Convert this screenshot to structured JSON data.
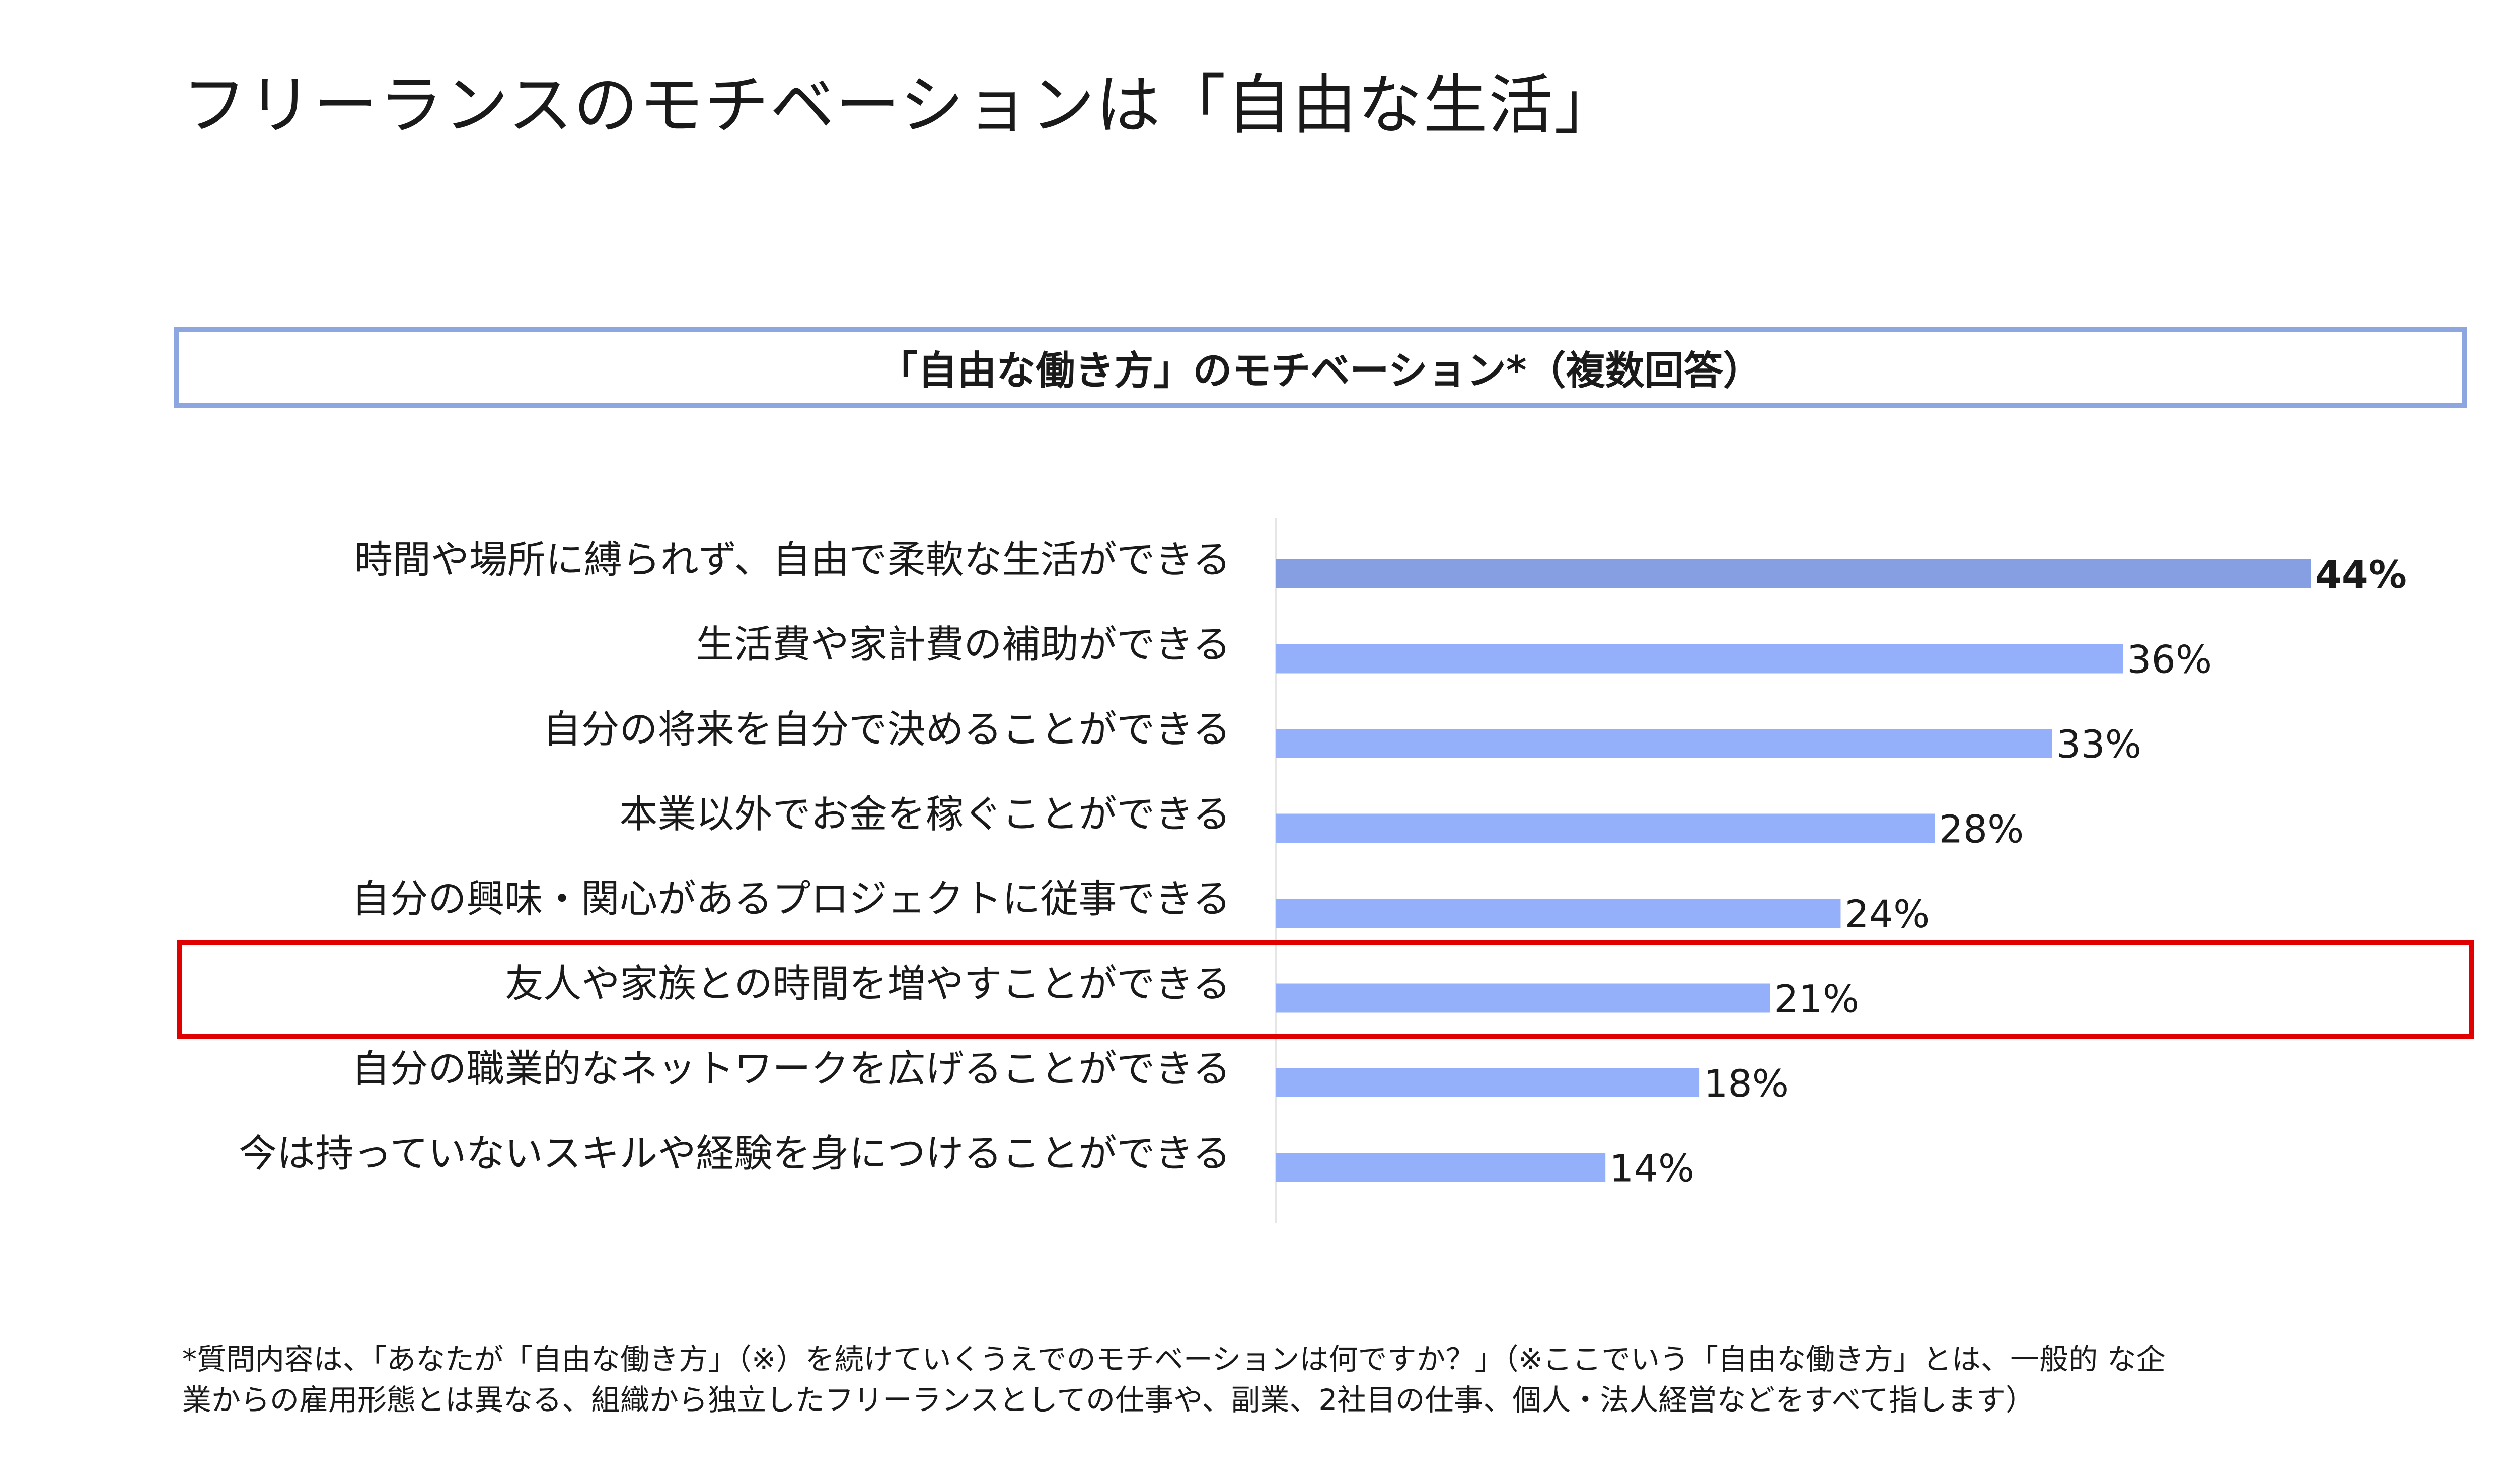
{
  "title": "フリーランスのモチベーションは「自由な生活」",
  "subtitle": "「自由な働き方」のモチベーション*（複数回答）",
  "chart_data": {
    "type": "bar",
    "orientation": "horizontal",
    "categories": [
      "時間や場所に縛られず、自由で柔軟な生活ができる",
      "生活費や家計費の補助ができる",
      "自分の将来を自分で決めることができる",
      "本業以外でお金を稼ぐことができる",
      "自分の興味・関心があるプロジェクトに従事できる",
      "友人や家族との時間を増やすことができる",
      "自分の職業的なネットワークを広げることができる",
      "今は持っていないスキルや経験を身につけることができる"
    ],
    "values": [
      44,
      36,
      33,
      28,
      24,
      21,
      18,
      14
    ],
    "value_labels": [
      "44%",
      "36%",
      "33%",
      "28%",
      "24%",
      "21%",
      "18%",
      "14%"
    ],
    "unit": "%",
    "xlim": [
      0,
      50
    ],
    "grid": false,
    "emphasized_index": 0,
    "highlighted_index": 5,
    "colors": {
      "bar": "#94b0fb",
      "bar_emphasized": "#869fe3",
      "highlight_border": "#e00000",
      "subtitle_border": "#8ea6e0",
      "axis_line": "#e6e6e6"
    }
  },
  "footnote": {
    "line1": "*質問内容は、「あなたが「自由な働き方」（※）を続けていくうえでのモチベーションは何ですか？」（※ここでいう「自由な働き方」とは、一般的 な企",
    "line2": "業からの雇用形態とは異なる、組織から独立したフリーランスとしての仕事や、副業、2社目の仕事、個人・法人経営などをすべて指します）"
  }
}
